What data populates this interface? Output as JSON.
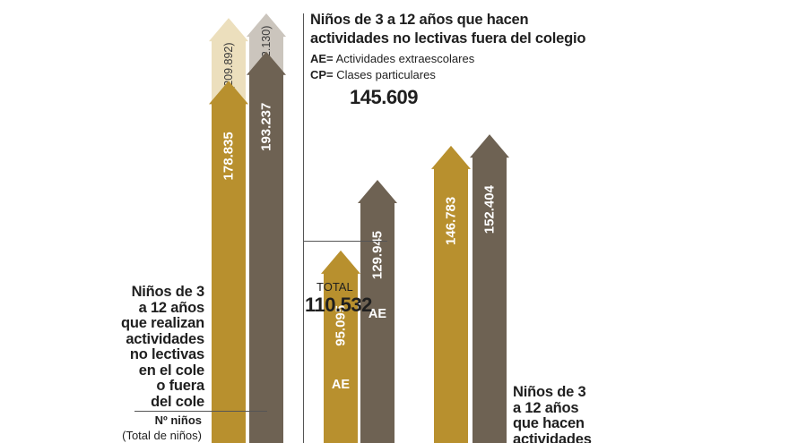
{
  "title": [
    "Niños de 3 a 12 años que hacen",
    "actividades no lectivas fuera del colegio"
  ],
  "legend": [
    {
      "key": "AE=",
      "text": "Actividades extraescolares"
    },
    {
      "key": "CP=",
      "text": "Clases particulares"
    }
  ],
  "left_label": [
    "Niños de 3",
    "a 12 años",
    "que realizan",
    "actividades",
    "no lectivas",
    "en el cole",
    "o fuera",
    "del cole"
  ],
  "unit_label": [
    "Nº niños",
    "(Total de niños)"
  ],
  "right_label": [
    "Niños de 3",
    "a 12 años",
    "que hacen",
    "actividades"
  ],
  "total_label": "TOTAL",
  "total_value": "110.532",
  "top_value": "145.609",
  "colors": {
    "gold": "#b8902e",
    "gold_light": "#ecdfbd",
    "brown": "#6e6253",
    "brown_light": "#cbc5bd",
    "text": "#1f1f1f"
  },
  "chart_data": {
    "type": "bar",
    "style": "arrows",
    "scale_top_value": 212130,
    "bars": [
      {
        "value": 178835,
        "label": "178.835",
        "ghost_value": 209892,
        "ghost_label": "(209.892)",
        "color": "gold",
        "ghost_color": "gold_light"
      },
      {
        "value": 193237,
        "label": "193.237",
        "ghost_value": 212130,
        "ghost_label": "(212.130)",
        "color": "brown",
        "ghost_color": "brown_light"
      },
      {
        "value": 95095,
        "label": "95.095",
        "tag": "AE",
        "color": "gold",
        "annotation": "TOTAL 110.532"
      },
      {
        "value": 129945,
        "label": "129.945",
        "tag": "AE",
        "color": "brown",
        "annotation": "145.609"
      },
      {
        "value": 146783,
        "label": "146.783",
        "color": "gold"
      },
      {
        "value": 152404,
        "label": "152.404",
        "color": "brown"
      }
    ]
  }
}
